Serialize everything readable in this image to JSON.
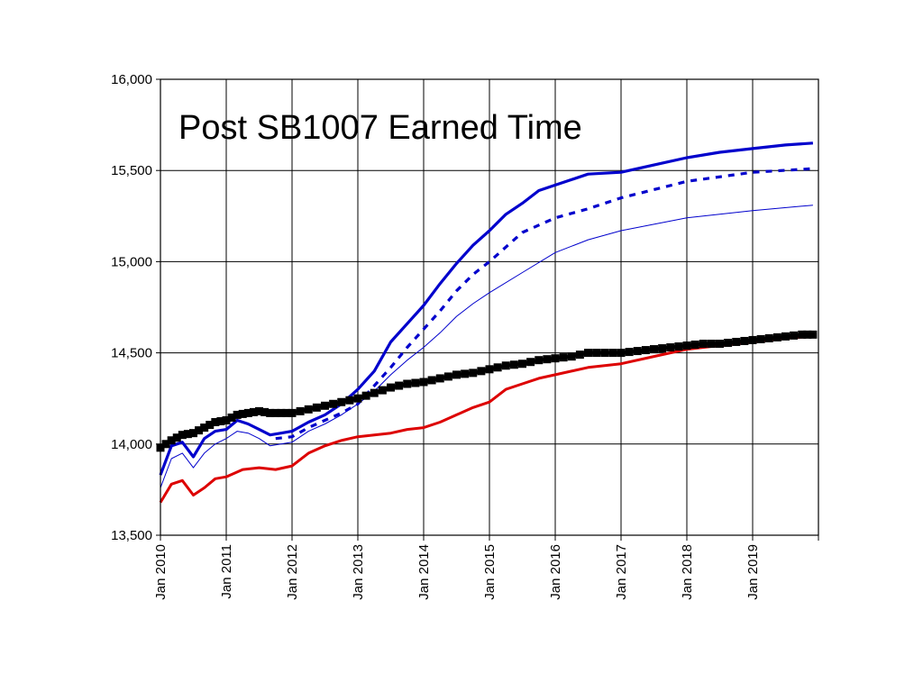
{
  "chart_data": {
    "type": "line",
    "title": "Post SB1007 Earned Time",
    "xlabel": "",
    "ylabel": "",
    "ylim": [
      13500,
      16000
    ],
    "yticks": [
      "13,500",
      "14,000",
      "14,500",
      "15,000",
      "15,500",
      "16,000"
    ],
    "ytick_values": [
      13500,
      14000,
      14500,
      15000,
      15500,
      16000
    ],
    "xlim": [
      "Jan 2010",
      "Jan 2020"
    ],
    "xticks": [
      "Jan 2010",
      "Jan 2011",
      "Jan 2012",
      "Jan 2013",
      "Jan 2014",
      "Jan 2015",
      "Jan 2016",
      "Jan 2017",
      "Jan 2018",
      "Jan 2019"
    ],
    "grid": true,
    "legend": "none",
    "series": [
      {
        "color": "#0000cc",
        "style": "solid-thick",
        "x": [
          "Jan 2010",
          "Mar 2010",
          "May 2010",
          "Jul 2010",
          "Sep 2010",
          "Nov 2010",
          "Jan 2011",
          "Mar 2011",
          "May 2011",
          "Jul 2011",
          "Sep 2011",
          "Nov 2011",
          "Jan 2012",
          "Apr 2012",
          "Jul 2012",
          "Oct 2012",
          "Jan 2013",
          "Apr 2013",
          "Jul 2013",
          "Oct 2013",
          "Jan 2014",
          "Apr 2014",
          "Jul 2014",
          "Oct 2014",
          "Jan 2015",
          "Apr 2015",
          "Jul 2015",
          "Oct 2015",
          "Jan 2016",
          "Jul 2016",
          "Jan 2017",
          "Jul 2017",
          "Jan 2018",
          "Jul 2018",
          "Jan 2019",
          "Jul 2019",
          "Dec 2019"
        ],
        "values": [
          13830,
          13990,
          14010,
          13930,
          14030,
          14070,
          14080,
          14130,
          14110,
          14080,
          14050,
          14060,
          14070,
          14120,
          14160,
          14220,
          14300,
          14400,
          14560,
          14660,
          14760,
          14880,
          14990,
          15090,
          15170,
          15260,
          15320,
          15390,
          15420,
          15480,
          15490,
          15530,
          15570,
          15600,
          15620,
          15640,
          15650
        ]
      },
      {
        "color": "#0000cc",
        "style": "dashed",
        "x": [
          "Oct 2011",
          "Jan 2012",
          "Apr 2012",
          "Jul 2012",
          "Oct 2012",
          "Jan 2013",
          "Apr 2013",
          "Jul 2013",
          "Oct 2013",
          "Jan 2014",
          "Apr 2014",
          "Jul 2014",
          "Oct 2014",
          "Jan 2015",
          "Jul 2015",
          "Jan 2016",
          "Jul 2016",
          "Jan 2017",
          "Jan 2018",
          "Jan 2019",
          "Dec 2019"
        ],
        "values": [
          14030,
          14040,
          14090,
          14130,
          14170,
          14220,
          14320,
          14420,
          14530,
          14630,
          14730,
          14840,
          14930,
          15000,
          15160,
          15240,
          15290,
          15350,
          15440,
          15490,
          15510
        ]
      },
      {
        "color": "#0000cc",
        "style": "solid-thin",
        "x": [
          "Jan 2010",
          "Mar 2010",
          "May 2010",
          "Jul 2010",
          "Sep 2010",
          "Nov 2010",
          "Jan 2011",
          "Mar 2011",
          "May 2011",
          "Jul 2011",
          "Sep 2011",
          "Nov 2011",
          "Jan 2012",
          "Apr 2012",
          "Jul 2012",
          "Oct 2012",
          "Jan 2013",
          "Apr 2013",
          "Jul 2013",
          "Oct 2013",
          "Jan 2014",
          "Apr 2014",
          "Jul 2014",
          "Oct 2014",
          "Jan 2015",
          "Jul 2015",
          "Jan 2016",
          "Jul 2016",
          "Jan 2017",
          "Jan 2018",
          "Jan 2019",
          "Dec 2019"
        ],
        "values": [
          13760,
          13920,
          13950,
          13870,
          13950,
          14000,
          14030,
          14070,
          14060,
          14030,
          13990,
          14000,
          14010,
          14070,
          14110,
          14160,
          14220,
          14290,
          14380,
          14460,
          14530,
          14610,
          14700,
          14770,
          14830,
          14940,
          15050,
          15120,
          15170,
          15240,
          15280,
          15310
        ]
      },
      {
        "color": "#dd0000",
        "style": "solid",
        "x": [
          "Jan 2010",
          "Mar 2010",
          "May 2010",
          "Jul 2010",
          "Sep 2010",
          "Nov 2010",
          "Jan 2011",
          "Apr 2011",
          "Jul 2011",
          "Oct 2011",
          "Jan 2012",
          "Apr 2012",
          "Jul 2012",
          "Oct 2012",
          "Jan 2013",
          "Apr 2013",
          "Jul 2013",
          "Oct 2013",
          "Jan 2014",
          "Apr 2014",
          "Jul 2014",
          "Oct 2014",
          "Jan 2015",
          "Apr 2015",
          "Jul 2015",
          "Oct 2015",
          "Jan 2016",
          "Jul 2016",
          "Jan 2017",
          "Jul 2017",
          "Jan 2018",
          "Jul 2018",
          "Jan 2019",
          "Jul 2019",
          "Dec 2019"
        ],
        "values": [
          13680,
          13780,
          13800,
          13720,
          13760,
          13810,
          13820,
          13860,
          13870,
          13860,
          13880,
          13950,
          13990,
          14020,
          14040,
          14050,
          14060,
          14080,
          14090,
          14120,
          14160,
          14200,
          14230,
          14300,
          14330,
          14360,
          14380,
          14420,
          14440,
          14480,
          14520,
          14540,
          14560,
          14580,
          14590
        ]
      },
      {
        "color": "#000000",
        "style": "square-markers",
        "x": [
          "Jan 2010",
          "Mar 2010",
          "May 2010",
          "Jul 2010",
          "Sep 2010",
          "Nov 2010",
          "Jan 2011",
          "Mar 2011",
          "May 2011",
          "Jul 2011",
          "Sep 2011",
          "Nov 2011",
          "Jan 2012",
          "Apr 2012",
          "Jul 2012",
          "Oct 2012",
          "Jan 2013",
          "Apr 2013",
          "Jul 2013",
          "Oct 2013",
          "Jan 2014",
          "Apr 2014",
          "Jul 2014",
          "Oct 2014",
          "Jan 2015",
          "Apr 2015",
          "Jul 2015",
          "Oct 2015",
          "Jan 2016",
          "Apr 2016",
          "Jul 2016",
          "Oct 2016",
          "Jan 2017",
          "Apr 2017",
          "Jul 2017",
          "Oct 2017",
          "Jan 2018",
          "Apr 2018",
          "Jul 2018",
          "Oct 2018",
          "Jan 2019",
          "Apr 2019",
          "Jul 2019",
          "Oct 2019",
          "Dec 2019"
        ],
        "values": [
          13980,
          14020,
          14050,
          14060,
          14090,
          14120,
          14130,
          14160,
          14170,
          14180,
          14170,
          14170,
          14170,
          14190,
          14210,
          14230,
          14250,
          14280,
          14310,
          14330,
          14340,
          14360,
          14380,
          14390,
          14410,
          14430,
          14440,
          14460,
          14470,
          14480,
          14500,
          14500,
          14500,
          14510,
          14520,
          14530,
          14540,
          14550,
          14550,
          14560,
          14570,
          14580,
          14590,
          14600,
          14600
        ]
      }
    ]
  }
}
